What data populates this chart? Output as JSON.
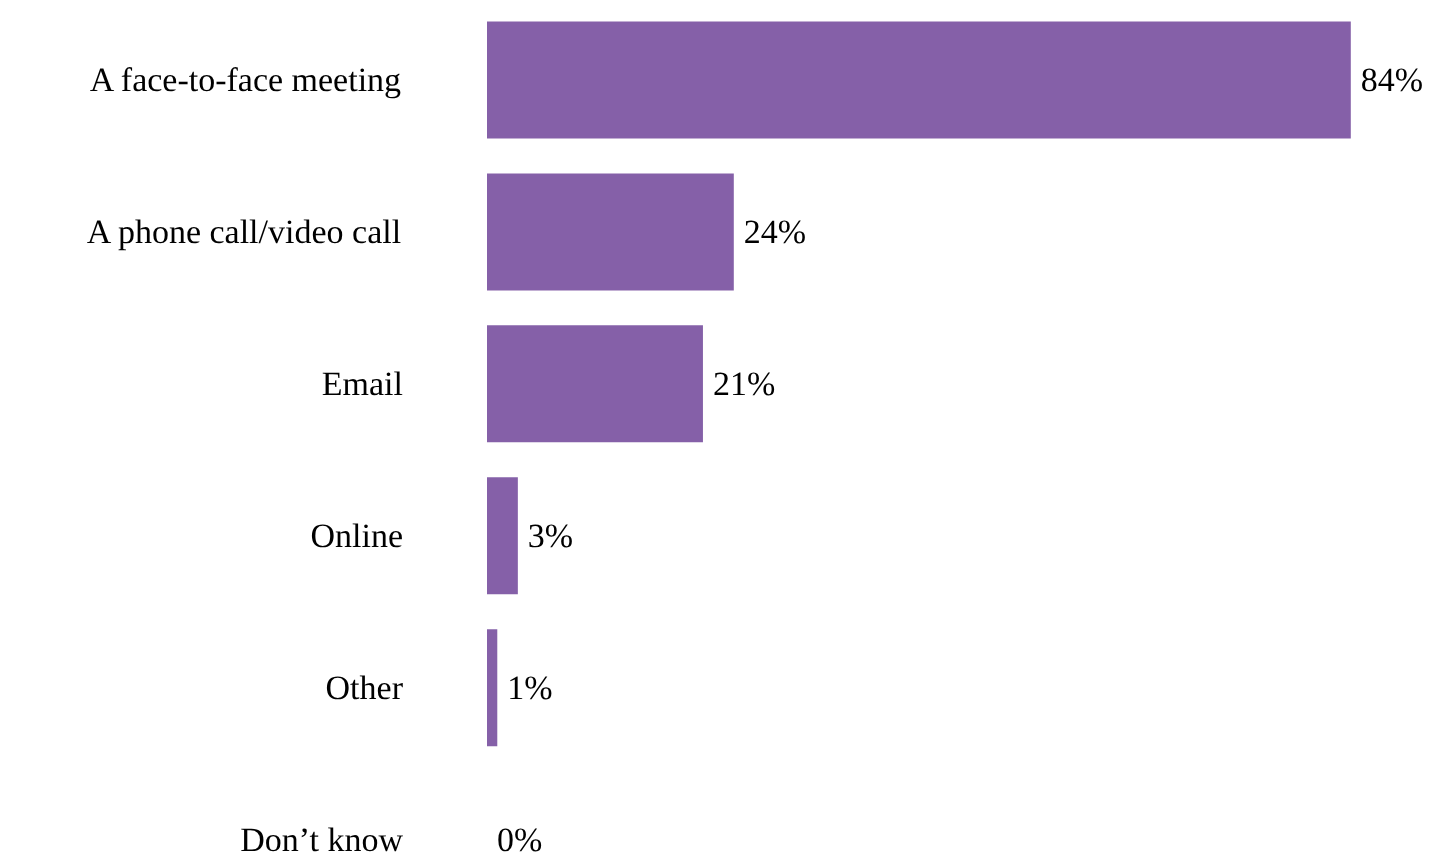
{
  "chart_data": {
    "type": "bar",
    "orientation": "horizontal",
    "categories": [
      "A face-to-face meeting",
      "A phone call/video call",
      "Email",
      "Online",
      "Other",
      "Don’t know"
    ],
    "values": [
      84,
      24,
      21,
      3,
      1,
      0
    ],
    "value_labels": [
      "84%",
      "24%",
      "21%",
      "3%",
      "1%",
      "0%"
    ],
    "color": "#8560a8",
    "grid": false
  }
}
